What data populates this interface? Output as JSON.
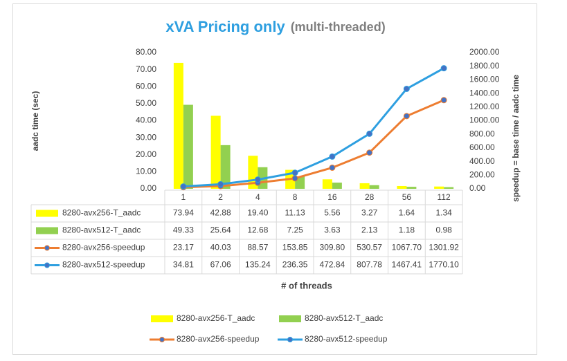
{
  "chart_data": {
    "type": "bar",
    "title": "xVA Pricing only",
    "subtitle": "(multi-threaded)",
    "x_label": "# of threads",
    "y_label": "aadc time (sec)",
    "y2_label": "speedup = base time / aadc time",
    "categories": [
      "1",
      "2",
      "4",
      "8",
      "16",
      "28",
      "56",
      "112"
    ],
    "ylim": [
      0,
      80
    ],
    "yticks": [
      {
        "value": 0,
        "label": "0.00"
      },
      {
        "value": 10,
        "label": "10.00"
      },
      {
        "value": 20,
        "label": "20.00"
      },
      {
        "value": 30,
        "label": "30.00"
      },
      {
        "value": 40,
        "label": "40.00"
      },
      {
        "value": 50,
        "label": "50.00"
      },
      {
        "value": 60,
        "label": "60.00"
      },
      {
        "value": 70,
        "label": "70.00"
      },
      {
        "value": 80,
        "label": "80.00"
      }
    ],
    "y2lim": [
      0,
      2000
    ],
    "y2ticks": [
      {
        "value": 0,
        "label": "0.00"
      },
      {
        "value": 200,
        "label": "200.00"
      },
      {
        "value": 400,
        "label": "400.00"
      },
      {
        "value": 600,
        "label": "600.00"
      },
      {
        "value": 800,
        "label": "800.00"
      },
      {
        "value": 1000,
        "label": "1000.00"
      },
      {
        "value": 1200,
        "label": "1200.00"
      },
      {
        "value": 1400,
        "label": "1400.00"
      },
      {
        "value": 1600,
        "label": "1600.00"
      },
      {
        "value": 1800,
        "label": "1800.00"
      },
      {
        "value": 2000,
        "label": "2000.00"
      }
    ],
    "grid": false,
    "series": [
      {
        "name": "8280-avx256-T_aadc",
        "type": "bar",
        "color": "#ffff00",
        "values": [
          73.94,
          42.88,
          19.4,
          11.13,
          5.56,
          3.27,
          1.64,
          1.34
        ],
        "value_labels": [
          "73.94",
          "42.88",
          "19.40",
          "11.13",
          "5.56",
          "3.27",
          "1.64",
          "1.34"
        ]
      },
      {
        "name": "8280-avx512-T_aadc",
        "type": "bar",
        "color": "#92d050",
        "values": [
          49.33,
          25.64,
          12.68,
          7.25,
          3.63,
          2.13,
          1.18,
          0.98
        ],
        "value_labels": [
          "49.33",
          "25.64",
          "12.68",
          "7.25",
          "3.63",
          "2.13",
          "1.18",
          "0.98"
        ]
      },
      {
        "name": "8280-avx256-speedup",
        "type": "line",
        "axis": "y2",
        "color": "#ed7d31",
        "values": [
          23.17,
          40.03,
          88.57,
          153.85,
          309.8,
          530.57,
          1067.7,
          1301.92
        ],
        "value_labels": [
          "23.17",
          "40.03",
          "88.57",
          "153.85",
          "309.80",
          "530.57",
          "1067.70",
          "1301.92"
        ]
      },
      {
        "name": "8280-avx512-speedup",
        "type": "line",
        "axis": "y2",
        "color": "#2e9fe0",
        "values": [
          34.81,
          67.06,
          135.24,
          236.35,
          472.84,
          807.78,
          1467.41,
          1770.1
        ],
        "value_labels": [
          "34.81",
          "67.06",
          "135.24",
          "236.35",
          "472.84",
          "807.78",
          "1467.41",
          "1770.10"
        ]
      }
    ]
  }
}
